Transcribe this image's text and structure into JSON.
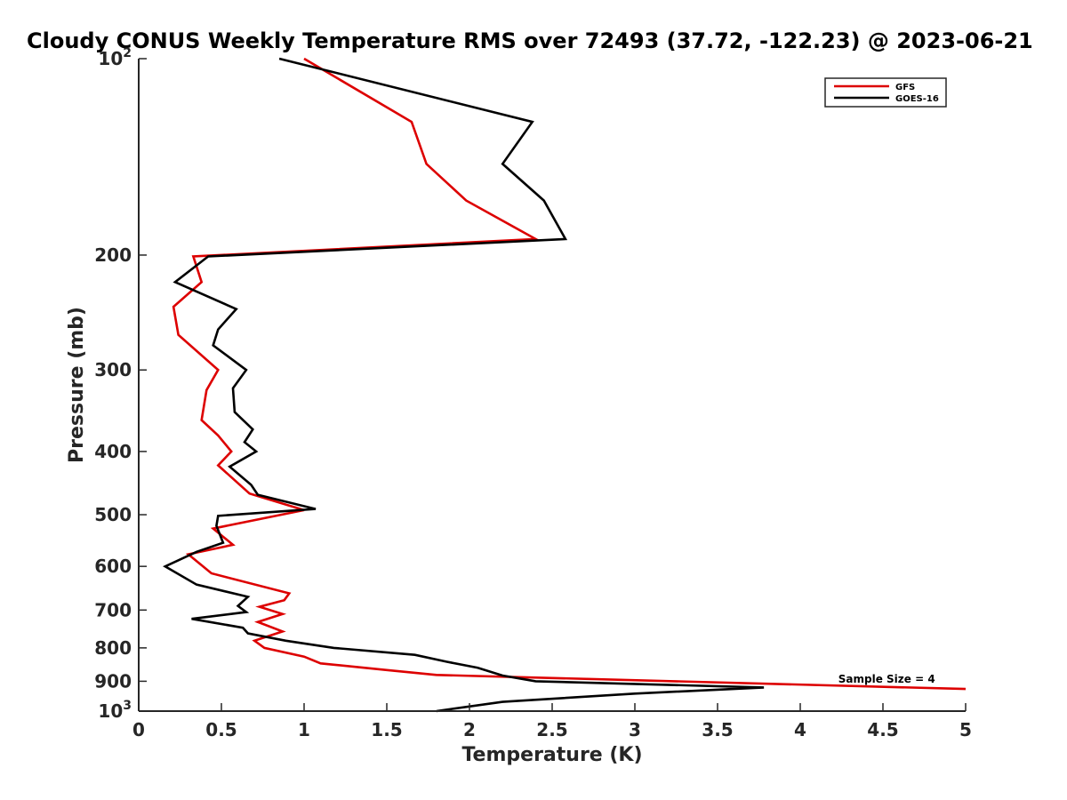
{
  "chart_data": {
    "type": "line",
    "title": "Cloudy CONUS Weekly Temperature RMS over 72493 (37.72, -122.23) @ 2023-06-21",
    "xlabel": "Temperature (K)",
    "ylabel": "Pressure (mb)",
    "xlim": [
      0,
      5
    ],
    "ylim": [
      100,
      1000
    ],
    "yscale": "log",
    "y_reversed": true,
    "xticks": [
      "0",
      "0.5",
      "1",
      "1.5",
      "2",
      "2.5",
      "3",
      "3.5",
      "4",
      "4.5",
      "5"
    ],
    "yticks": [
      {
        "value": 100,
        "label": "10",
        "sup": "2"
      },
      {
        "value": 200,
        "label": "200",
        "sup": ""
      },
      {
        "value": 300,
        "label": "300",
        "sup": ""
      },
      {
        "value": 400,
        "label": "400",
        "sup": ""
      },
      {
        "value": 500,
        "label": "500",
        "sup": ""
      },
      {
        "value": 600,
        "label": "600",
        "sup": ""
      },
      {
        "value": 700,
        "label": "700",
        "sup": ""
      },
      {
        "value": 800,
        "label": "800",
        "sup": ""
      },
      {
        "value": 900,
        "label": "900",
        "sup": ""
      },
      {
        "value": 1000,
        "label": "10",
        "sup": "3"
      }
    ],
    "grid": false,
    "legend_position": "top-right",
    "series": [
      {
        "name": "GFS",
        "color": "#dd0000",
        "points": [
          [
            1.0,
            100
          ],
          [
            1.65,
            125
          ],
          [
            1.74,
            145
          ],
          [
            1.98,
            165
          ],
          [
            2.4,
            189
          ],
          [
            0.33,
            201
          ],
          [
            0.38,
            220
          ],
          [
            0.21,
            240
          ],
          [
            0.24,
            265
          ],
          [
            0.48,
            300
          ],
          [
            0.41,
            322
          ],
          [
            0.38,
            358
          ],
          [
            0.48,
            378
          ],
          [
            0.56,
            400
          ],
          [
            0.48,
            420
          ],
          [
            0.67,
            464
          ],
          [
            1.0,
            492
          ],
          [
            0.45,
            525
          ],
          [
            0.57,
            556
          ],
          [
            0.3,
            575
          ],
          [
            0.44,
            615
          ],
          [
            0.91,
            660
          ],
          [
            0.88,
            676
          ],
          [
            0.73,
            692
          ],
          [
            0.87,
            710
          ],
          [
            0.72,
            730
          ],
          [
            0.87,
            755
          ],
          [
            0.7,
            780
          ],
          [
            0.76,
            800
          ],
          [
            1.0,
            825
          ],
          [
            1.1,
            845
          ],
          [
            1.5,
            865
          ],
          [
            1.8,
            880
          ],
          [
            5.0,
            925
          ]
        ]
      },
      {
        "name": "GOES-16",
        "color": "#000000",
        "points": [
          [
            0.85,
            100
          ],
          [
            2.38,
            125
          ],
          [
            2.2,
            145
          ],
          [
            2.45,
            165
          ],
          [
            2.58,
            189
          ],
          [
            0.42,
            201
          ],
          [
            0.22,
            220
          ],
          [
            0.59,
            242
          ],
          [
            0.48,
            260
          ],
          [
            0.45,
            275
          ],
          [
            0.65,
            300
          ],
          [
            0.57,
            320
          ],
          [
            0.58,
            348
          ],
          [
            0.69,
            370
          ],
          [
            0.64,
            387
          ],
          [
            0.71,
            400
          ],
          [
            0.55,
            422
          ],
          [
            0.68,
            450
          ],
          [
            0.72,
            466
          ],
          [
            1.07,
            490
          ],
          [
            0.48,
            502
          ],
          [
            0.47,
            520
          ],
          [
            0.51,
            552
          ],
          [
            0.35,
            570
          ],
          [
            0.16,
            600
          ],
          [
            0.35,
            640
          ],
          [
            0.66,
            668
          ],
          [
            0.6,
            690
          ],
          [
            0.65,
            705
          ],
          [
            0.32,
            722
          ],
          [
            0.63,
            745
          ],
          [
            0.66,
            760
          ],
          [
            0.89,
            780
          ],
          [
            1.18,
            800
          ],
          [
            1.67,
            820
          ],
          [
            1.86,
            840
          ],
          [
            2.05,
            858
          ],
          [
            2.2,
            882
          ],
          [
            2.4,
            900
          ],
          [
            3.78,
            920
          ],
          [
            3.0,
            940
          ],
          [
            2.2,
            968
          ],
          [
            1.8,
            1000
          ]
        ]
      }
    ],
    "annotations": [
      {
        "text": "Sample Size = 4",
        "x": 4.23,
        "y": 905
      }
    ]
  }
}
